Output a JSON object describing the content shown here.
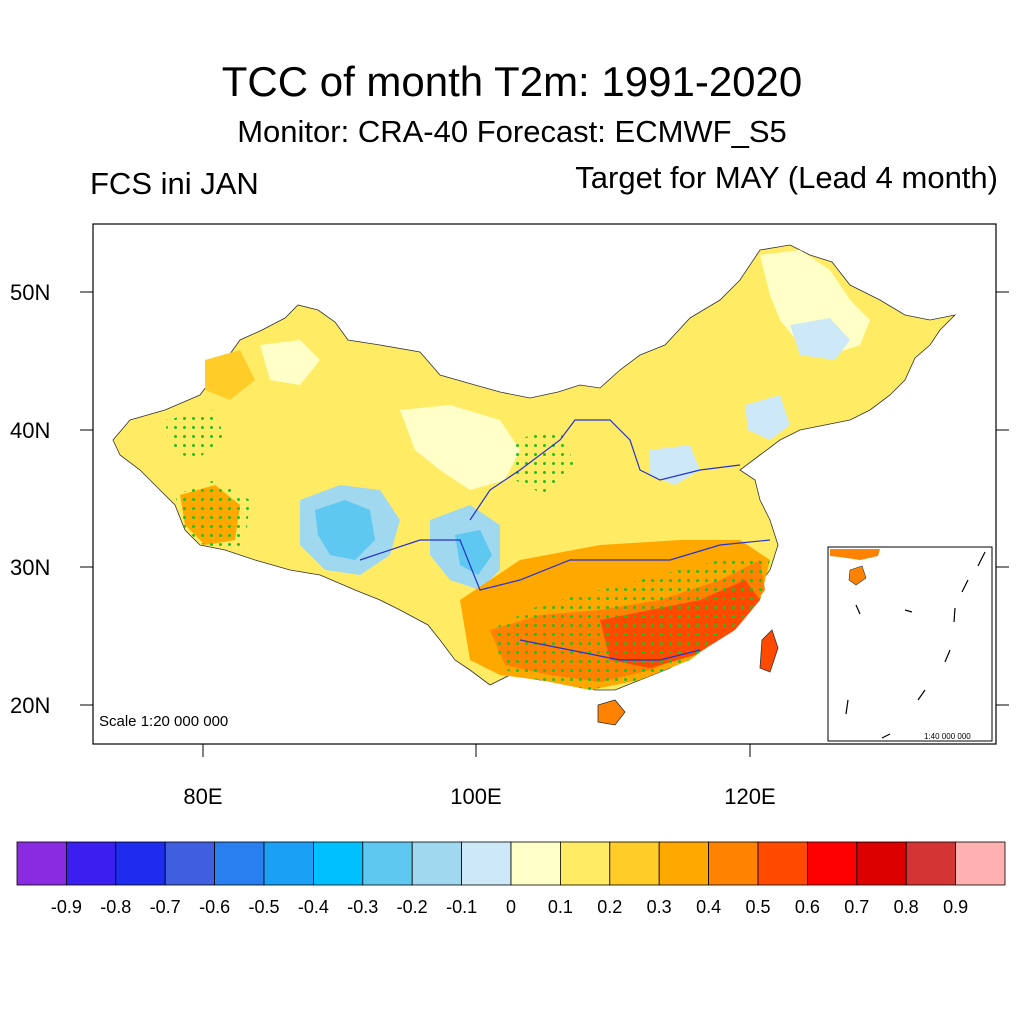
{
  "header": {
    "title": "TCC of month T2m: 1991-2020",
    "subtitle": "Monitor: CRA-40   Forecast: ECMWF_S5",
    "left_label": "FCS ini JAN",
    "right_label": "Target for MAY (Lead 4 month)"
  },
  "map": {
    "scale_label": "Scale 1:20 000 000",
    "inset_scale_label": "1:40 000 000",
    "lat_labels": [
      "50N",
      "40N",
      "30N",
      "20N"
    ],
    "lon_labels": [
      "80E",
      "100E",
      "120E"
    ]
  },
  "colorbar": {
    "labels": [
      "-0.9",
      "-0.8",
      "-0.7",
      "-0.6",
      "-0.5",
      "-0.4",
      "-0.3",
      "-0.2",
      "-0.1",
      "0",
      "0.1",
      "0.2",
      "0.3",
      "0.4",
      "0.5",
      "0.6",
      "0.7",
      "0.8",
      "0.9"
    ],
    "colors": [
      "#8a2be2",
      "#3a1ff0",
      "#1e2cf0",
      "#3f5fe0",
      "#2a7ff0",
      "#1aa0f5",
      "#00c0ff",
      "#5fc8f0",
      "#a0d8f0",
      "#cde9f8",
      "#ffffc8",
      "#ffec64",
      "#ffcc28",
      "#ffa800",
      "#ff8200",
      "#ff4a00",
      "#ff0000",
      "#dc0000",
      "#d43434",
      "#ffb0b0"
    ]
  }
}
